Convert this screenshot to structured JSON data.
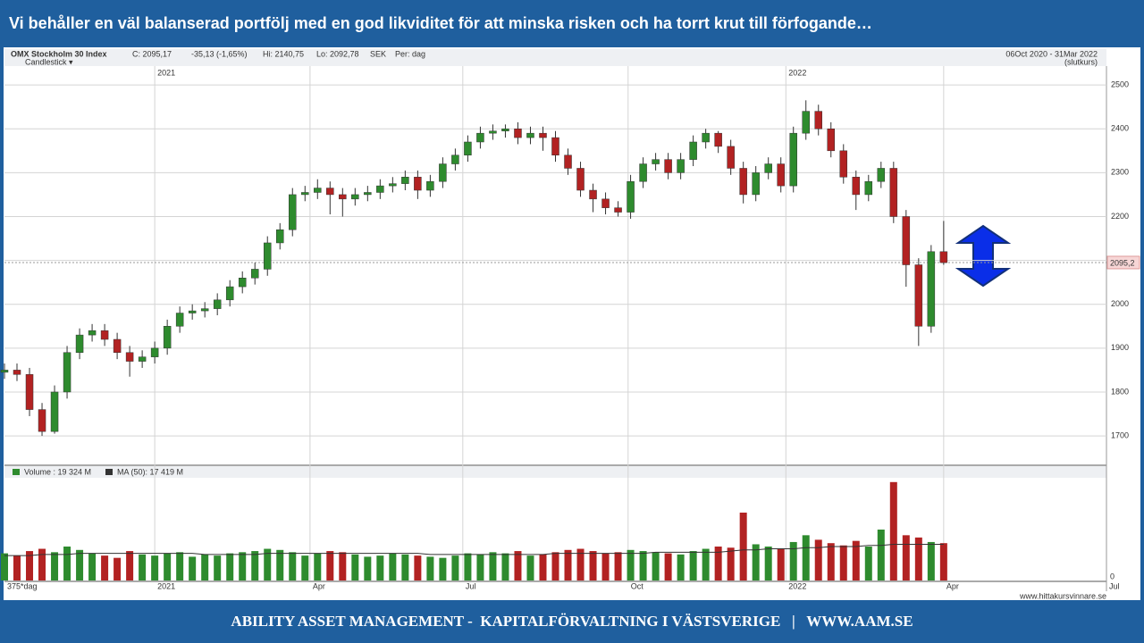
{
  "slide": {
    "title": "Vi behåller en väl balanserad portfölj med en god likviditet för att minska risken och ha torrt krut till förfogande…",
    "footer": "ABILITY ASSET MANAGEMENT -  KAPITALFÖRVALTNING I VÄSTSVERIGE   |   WWW.AAM.SE"
  },
  "chart_data": {
    "type": "candlestick",
    "info": [
      "OMX Stockholm 30 Index",
      "C: 2095,17",
      "-35,13 (-1,65%)",
      "Hi: 2140,75",
      "Lo: 2092,78",
      "SEK",
      "Per: dag"
    ],
    "date_range": "06Oct 2020 - 31Mar 2022",
    "price_type": "(slutkurs)",
    "chart_style": "Candlestick ▾",
    "period_label": "375*dag",
    "source": "www.hittakursvinnare.se",
    "up_color": "#2e8b2e",
    "down_color": "#b22222",
    "grid": true,
    "xlim": [
      0,
      440
    ],
    "xticks": [
      {
        "value": 60,
        "label": "2021"
      },
      {
        "value": 122,
        "label": "Apr"
      },
      {
        "value": 183,
        "label": "Jul"
      },
      {
        "value": 249,
        "label": "Oct"
      },
      {
        "value": 312,
        "label": "2022"
      },
      {
        "value": 375,
        "label": "Apr"
      },
      {
        "value": 440,
        "label": "Jul"
      }
    ],
    "ylim": [
      1635,
      2541
    ],
    "yticks": [
      1700,
      1800,
      1900,
      2000,
      2100,
      2200,
      2300,
      2400,
      2500
    ],
    "last_price": {
      "value": 2095.2,
      "label": "2095,2"
    },
    "x": [
      0,
      5,
      10,
      15,
      20,
      25,
      30,
      35,
      40,
      45,
      50,
      55,
      60,
      65,
      70,
      75,
      80,
      85,
      90,
      95,
      100,
      105,
      110,
      115,
      120,
      125,
      130,
      135,
      140,
      145,
      150,
      155,
      160,
      165,
      170,
      175,
      180,
      185,
      190,
      195,
      200,
      205,
      210,
      215,
      220,
      225,
      230,
      235,
      240,
      245,
      250,
      255,
      260,
      265,
      270,
      275,
      280,
      285,
      290,
      295,
      300,
      305,
      310,
      315,
      320,
      325,
      330,
      335,
      340,
      345,
      350,
      355,
      360,
      365,
      370,
      375
    ],
    "open": [
      1845,
      1850,
      1840,
      1760,
      1710,
      1800,
      1890,
      1930,
      1940,
      1920,
      1890,
      1870,
      1880,
      1900,
      1950,
      1980,
      1985,
      1990,
      2010,
      2040,
      2060,
      2080,
      2140,
      2170,
      2250,
      2255,
      2265,
      2250,
      2240,
      2250,
      2255,
      2270,
      2275,
      2290,
      2260,
      2280,
      2320,
      2340,
      2370,
      2390,
      2395,
      2400,
      2380,
      2390,
      2380,
      2340,
      2310,
      2260,
      2240,
      2220,
      2210,
      2280,
      2320,
      2330,
      2300,
      2330,
      2370,
      2390,
      2360,
      2310,
      2250,
      2300,
      2320,
      2270,
      2390,
      2440,
      2400,
      2350,
      2290,
      2250,
      2280,
      2310,
      2200,
      2090,
      1950,
      2120
    ],
    "high": [
      1865,
      1865,
      1855,
      1775,
      1815,
      1905,
      1945,
      1955,
      1955,
      1935,
      1905,
      1895,
      1915,
      1965,
      1995,
      2000,
      2005,
      2025,
      2055,
      2075,
      2095,
      2155,
      2185,
      2265,
      2270,
      2285,
      2280,
      2265,
      2265,
      2270,
      2285,
      2290,
      2305,
      2305,
      2295,
      2335,
      2355,
      2385,
      2405,
      2410,
      2410,
      2415,
      2405,
      2405,
      2395,
      2355,
      2325,
      2275,
      2255,
      2235,
      2295,
      2335,
      2345,
      2345,
      2345,
      2385,
      2400,
      2395,
      2375,
      2325,
      2315,
      2335,
      2335,
      2405,
      2465,
      2455,
      2415,
      2365,
      2305,
      2295,
      2325,
      2325,
      2215,
      2105,
      2135,
      2190
    ],
    "low": [
      1830,
      1825,
      1745,
      1700,
      1705,
      1785,
      1875,
      1915,
      1905,
      1875,
      1835,
      1855,
      1865,
      1885,
      1935,
      1965,
      1970,
      1975,
      1995,
      2025,
      2045,
      2065,
      2125,
      2155,
      2235,
      2240,
      2205,
      2200,
      2225,
      2235,
      2240,
      2255,
      2260,
      2240,
      2245,
      2265,
      2305,
      2325,
      2355,
      2375,
      2380,
      2365,
      2365,
      2350,
      2325,
      2295,
      2245,
      2210,
      2205,
      2200,
      2195,
      2265,
      2305,
      2285,
      2285,
      2315,
      2355,
      2345,
      2295,
      2230,
      2235,
      2285,
      2255,
      2255,
      2375,
      2385,
      2335,
      2275,
      2215,
      2235,
      2265,
      2185,
      2040,
      1905,
      1935,
      2090
    ],
    "close": [
      1850,
      1840,
      1760,
      1710,
      1800,
      1890,
      1930,
      1940,
      1920,
      1890,
      1870,
      1880,
      1900,
      1950,
      1980,
      1985,
      1990,
      2010,
      2040,
      2060,
      2080,
      2140,
      2170,
      2250,
      2255,
      2265,
      2250,
      2240,
      2250,
      2255,
      2270,
      2275,
      2290,
      2260,
      2280,
      2320,
      2340,
      2370,
      2390,
      2395,
      2400,
      2380,
      2390,
      2380,
      2340,
      2310,
      2260,
      2240,
      2220,
      2210,
      2280,
      2320,
      2330,
      2300,
      2330,
      2370,
      2390,
      2360,
      2310,
      2250,
      2300,
      2320,
      2270,
      2390,
      2440,
      2400,
      2350,
      2290,
      2250,
      2280,
      2310,
      2200,
      2090,
      1950,
      2120,
      2095
    ],
    "volume": {
      "label": "Volume : 19 324 M",
      "ma_label": "MA (50): 17 419 M",
      "ma_color": "#333333",
      "ylim": [
        0,
        90
      ],
      "yticks": [
        0
      ],
      "values": [
        24,
        22,
        26,
        28,
        25,
        30,
        27,
        24,
        22,
        20,
        26,
        23,
        22,
        24,
        25,
        21,
        23,
        22,
        24,
        25,
        26,
        28,
        27,
        25,
        22,
        24,
        26,
        25,
        23,
        21,
        22,
        24,
        23,
        22,
        21,
        20,
        22,
        24,
        23,
        25,
        24,
        26,
        22,
        23,
        25,
        27,
        28,
        26,
        24,
        25,
        27,
        26,
        25,
        24,
        23,
        26,
        28,
        30,
        29,
        60,
        32,
        30,
        28,
        34,
        40,
        36,
        33,
        31,
        35,
        30,
        45,
        87,
        40,
        38,
        34,
        33
      ],
      "ma": [
        22,
        22,
        22,
        23,
        23,
        23,
        24,
        24,
        24,
        24,
        24,
        24,
        24,
        24,
        24,
        24,
        23,
        23,
        23,
        23,
        23,
        24,
        24,
        24,
        24,
        24,
        24,
        24,
        24,
        24,
        24,
        24,
        24,
        24,
        23,
        23,
        23,
        23,
        23,
        23,
        23,
        23,
        23,
        23,
        24,
        24,
        24,
        24,
        24,
        24,
        24,
        24,
        25,
        25,
        25,
        25,
        25,
        25,
        26,
        27,
        27,
        28,
        28,
        28,
        29,
        29,
        30,
        30,
        30,
        31,
        31,
        32,
        32,
        32,
        32,
        32
      ]
    }
  }
}
